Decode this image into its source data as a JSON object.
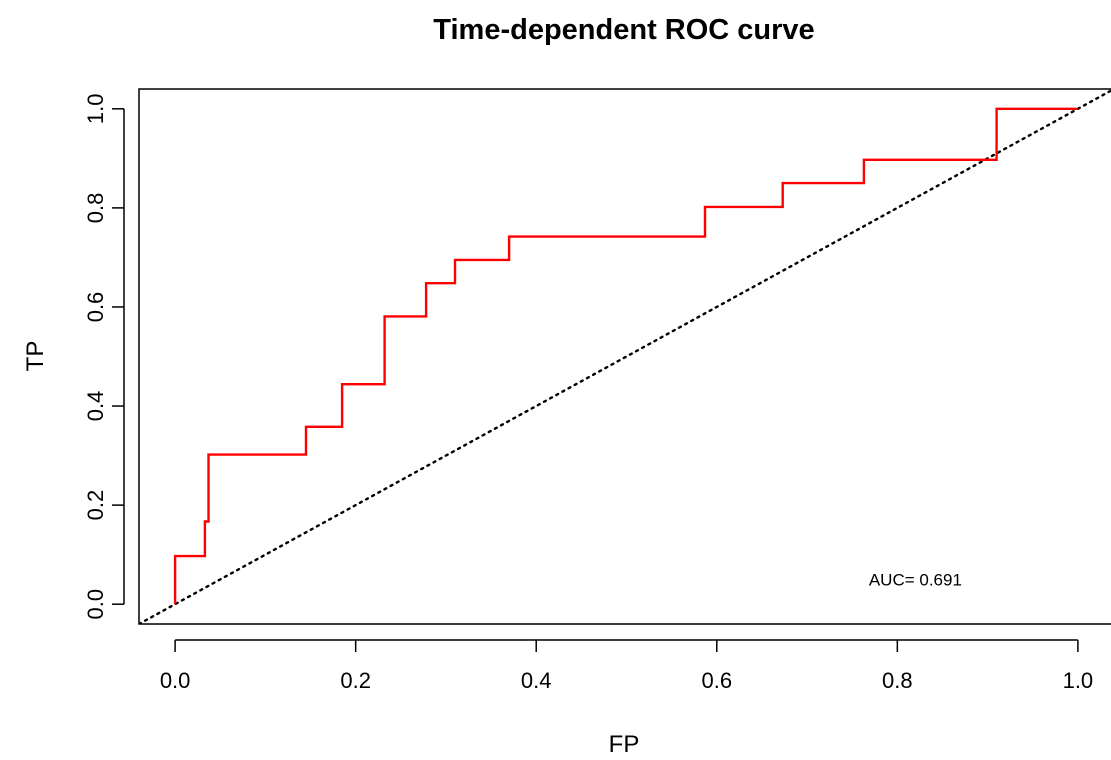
{
  "chart_data": {
    "type": "line",
    "title": "Time-dependent ROC curve",
    "xlabel": "FP",
    "ylabel": "TP",
    "xlim": [
      -0.04,
      1.04
    ],
    "ylim": [
      -0.04,
      1.04
    ],
    "x_ticks": [
      "0.0",
      "0.2",
      "0.4",
      "0.6",
      "0.8",
      "1.0"
    ],
    "y_ticks": [
      "0.0",
      "0.2",
      "0.4",
      "0.6",
      "0.8",
      "1.0"
    ],
    "x_tick_values": [
      0,
      0.2,
      0.4,
      0.6,
      0.8,
      1.0
    ],
    "y_tick_values": [
      0,
      0.2,
      0.4,
      0.6,
      0.8,
      1.0
    ],
    "grid": false,
    "annotation": "AUC= 0.691",
    "annotation_position": {
      "x": 0.82,
      "y": 0.05
    },
    "series": [
      {
        "color": "#ff0000",
        "style": "step",
        "x": [
          0,
          0,
          0.033,
          0.033,
          0.037,
          0.037,
          0.145,
          0.145,
          0.185,
          0.185,
          0.232,
          0.232,
          0.278,
          0.278,
          0.31,
          0.31,
          0.37,
          0.37,
          0.587,
          0.587,
          0.673,
          0.673,
          0.763,
          0.763,
          0.91,
          0.91,
          1.0
        ],
        "y": [
          0,
          0.097,
          0.097,
          0.167,
          0.167,
          0.302,
          0.302,
          0.358,
          0.358,
          0.444,
          0.444,
          0.581,
          0.581,
          0.648,
          0.648,
          0.695,
          0.695,
          0.742,
          0.742,
          0.802,
          0.802,
          0.85,
          0.85,
          0.897,
          0.897,
          1.0,
          1.0
        ]
      },
      {
        "color": "#000000",
        "style": "dotted",
        "x": [
          -0.04,
          1.04
        ],
        "y": [
          -0.04,
          1.04
        ]
      }
    ]
  }
}
